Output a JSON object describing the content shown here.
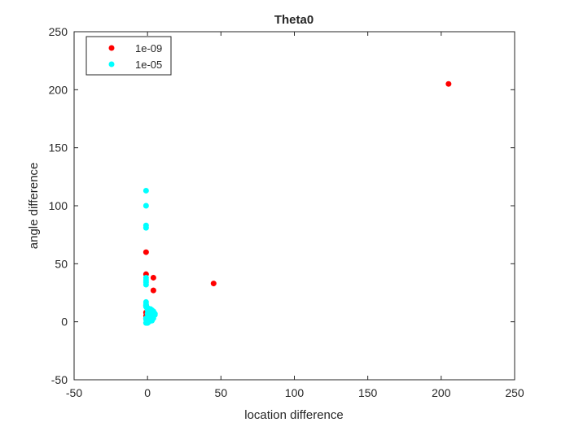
{
  "chart_data": {
    "type": "scatter",
    "title": "Theta0",
    "xlabel": "location difference",
    "ylabel": "angle difference",
    "xlim": [
      -50,
      250
    ],
    "ylim": [
      -50,
      250
    ],
    "xticks": [
      -50,
      0,
      50,
      100,
      150,
      200,
      250
    ],
    "yticks": [
      -50,
      0,
      50,
      100,
      150,
      200,
      250
    ],
    "grid": false,
    "legend_position": "top-left",
    "series": [
      {
        "name": "1e-09",
        "color": "#ff0000",
        "points": [
          [
            205,
            205
          ],
          [
            45,
            33
          ],
          [
            4,
            38
          ],
          [
            4,
            27
          ],
          [
            -1,
            60
          ],
          [
            -1,
            41
          ],
          [
            -1,
            8
          ],
          [
            -1,
            5
          ],
          [
            -1,
            3
          ],
          [
            0,
            2
          ],
          [
            0,
            6
          ],
          [
            1,
            4
          ],
          [
            2,
            3
          ],
          [
            3,
            2
          ],
          [
            4,
            5
          ],
          [
            0,
            10
          ],
          [
            -1,
            14
          ],
          [
            2,
            1
          ],
          [
            3,
            3
          ]
        ]
      },
      {
        "name": "1e-05",
        "color": "#00ffff",
        "points": [
          [
            -1,
            113
          ],
          [
            -1,
            100
          ],
          [
            -1,
            83
          ],
          [
            -1,
            81
          ],
          [
            -1,
            38
          ],
          [
            -1,
            36
          ],
          [
            -1,
            34
          ],
          [
            -1,
            32
          ],
          [
            -1,
            17
          ],
          [
            -1,
            15
          ],
          [
            -1,
            13
          ],
          [
            0,
            12
          ],
          [
            0,
            10
          ],
          [
            1,
            11
          ],
          [
            2,
            11
          ],
          [
            3,
            10
          ],
          [
            4,
            9
          ],
          [
            5,
            7
          ],
          [
            5,
            6
          ],
          [
            3,
            7
          ],
          [
            2,
            6
          ],
          [
            1,
            5
          ],
          [
            0,
            4
          ],
          [
            -1,
            3
          ],
          [
            -1,
            2
          ],
          [
            0,
            1
          ],
          [
            1,
            0
          ],
          [
            -1,
            -1
          ],
          [
            0,
            -1
          ],
          [
            2,
            2
          ],
          [
            3,
            4
          ],
          [
            4,
            3
          ],
          [
            1,
            8
          ],
          [
            0,
            7
          ],
          [
            2,
            9
          ],
          [
            3,
            1
          ],
          [
            4,
            6
          ]
        ]
      }
    ]
  }
}
